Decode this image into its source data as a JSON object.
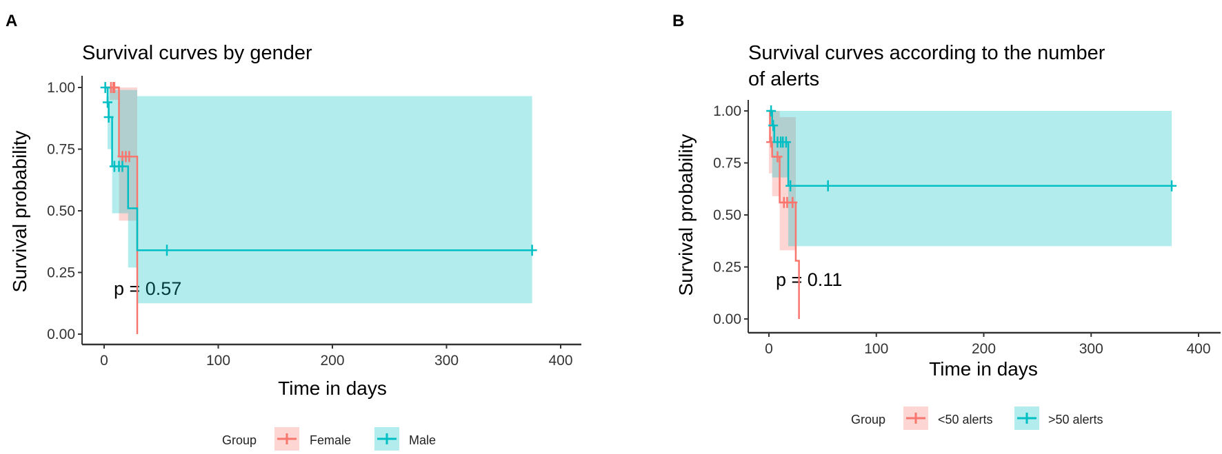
{
  "chart_data": [
    {
      "panel": "A",
      "type": "line",
      "subtype": "kaplan-meier step",
      "title": "Survival curves by gender",
      "xlabel": "Time in days",
      "ylabel": "Survival probability",
      "xlim": [
        0,
        400
      ],
      "ylim": [
        0,
        1
      ],
      "xticks": [
        "0",
        "100",
        "200",
        "300",
        "400"
      ],
      "yticks": [
        "0.00",
        "0.25",
        "0.50",
        "0.75",
        "1.00"
      ],
      "annotation": "p = 0.57",
      "legend_title": "Group",
      "legend_position": "bottom",
      "grid": false,
      "series": [
        {
          "name": "Female",
          "color": "#F8766D",
          "steps": [
            [
              5,
              1.0
            ],
            [
              13,
              1.0
            ],
            [
              13,
              0.72
            ],
            [
              29,
              0.72
            ],
            [
              29,
              0.0
            ]
          ],
          "censored": [
            [
              6,
              1.0
            ],
            [
              8,
              1.0
            ],
            [
              9,
              1.0
            ],
            [
              16,
              0.72
            ],
            [
              19,
              0.72
            ],
            [
              22,
              0.72
            ]
          ],
          "ci": [
            [
              5,
              13,
              0.95,
              1.0
            ],
            [
              13,
              29,
              0.46,
              1.0
            ]
          ]
        },
        {
          "name": "Male",
          "color": "#00BFC4",
          "steps": [
            [
              0,
              1.0
            ],
            [
              3,
              1.0
            ],
            [
              3,
              0.94
            ],
            [
              4,
              0.94
            ],
            [
              4,
              0.88
            ],
            [
              7,
              0.88
            ],
            [
              7,
              0.68
            ],
            [
              21,
              0.68
            ],
            [
              21,
              0.51
            ],
            [
              29,
              0.51
            ],
            [
              29,
              0.34
            ],
            [
              375,
              0.34
            ]
          ],
          "censored": [
            [
              1,
              1.0
            ],
            [
              3,
              0.94
            ],
            [
              4,
              0.88
            ],
            [
              9,
              0.68
            ],
            [
              13,
              0.68
            ],
            [
              16,
              0.68
            ],
            [
              55,
              0.34
            ],
            [
              375,
              0.34
            ]
          ],
          "ci": [
            [
              3,
              7,
              0.75,
              1.0
            ],
            [
              7,
              21,
              0.49,
              0.99
            ],
            [
              21,
              29,
              0.27,
              0.99
            ],
            [
              29,
              375,
              0.125,
              0.965
            ]
          ]
        }
      ]
    },
    {
      "panel": "B",
      "type": "line",
      "subtype": "kaplan-meier step",
      "title": [
        "Survival curves according to the number",
        "of alerts"
      ],
      "xlabel": "Time in days",
      "ylabel": "Survival probability",
      "xlim": [
        0,
        400
      ],
      "ylim": [
        0,
        1
      ],
      "xticks": [
        "0",
        "100",
        "200",
        "300",
        "400"
      ],
      "yticks": [
        "0.00",
        "0.25",
        "0.50",
        "0.75",
        "1.00"
      ],
      "annotation": "p = 0.11",
      "legend_title": "Group",
      "legend_position": "bottom",
      "grid": false,
      "series": [
        {
          "name": "<50 alerts",
          "color": "#F8766D",
          "steps": [
            [
              0,
              1.0
            ],
            [
              1,
              1.0
            ],
            [
              1,
              0.85
            ],
            [
              3,
              0.85
            ],
            [
              3,
              0.78
            ],
            [
              10,
              0.78
            ],
            [
              10,
              0.56
            ],
            [
              25,
              0.56
            ],
            [
              25,
              0.28
            ],
            [
              28,
              0.28
            ],
            [
              28,
              0.0
            ]
          ],
          "censored": [
            [
              2,
              0.85
            ],
            [
              8,
              0.78
            ],
            [
              14,
              0.56
            ],
            [
              17,
              0.56
            ],
            [
              22,
              0.56
            ]
          ],
          "ci": [
            [
              0,
              3,
              0.7,
              1.0
            ],
            [
              3,
              10,
              0.59,
              1.0
            ],
            [
              10,
              25,
              0.33,
              0.97
            ]
          ]
        },
        {
          "name": ">50 alerts",
          "color": "#00BFC4",
          "steps": [
            [
              0,
              1.0
            ],
            [
              3,
              1.0
            ],
            [
              3,
              0.93
            ],
            [
              5,
              0.93
            ],
            [
              5,
              0.85
            ],
            [
              18,
              0.85
            ],
            [
              18,
              0.64
            ],
            [
              375,
              0.64
            ]
          ],
          "censored": [
            [
              2,
              1.0
            ],
            [
              4,
              0.93
            ],
            [
              8,
              0.85
            ],
            [
              11,
              0.85
            ],
            [
              13,
              0.85
            ],
            [
              16,
              0.85
            ],
            [
              20,
              0.64
            ],
            [
              55,
              0.64
            ],
            [
              375,
              0.64
            ]
          ],
          "ci": [
            [
              3,
              18,
              0.68,
              1.0
            ],
            [
              18,
              375,
              0.35,
              1.0
            ]
          ]
        }
      ]
    }
  ],
  "panels": {
    "a_letter": "A",
    "b_letter": "B"
  }
}
